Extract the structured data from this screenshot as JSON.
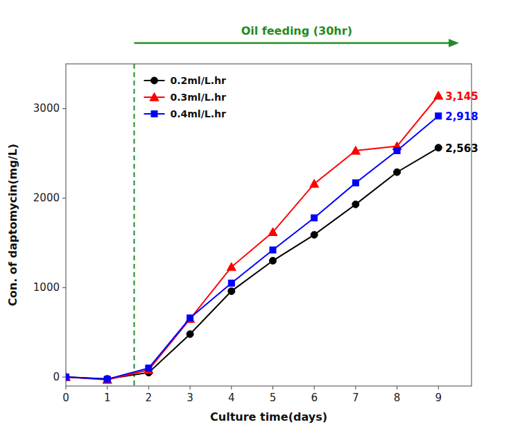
{
  "chart_data": {
    "type": "line",
    "x": [
      0,
      1,
      2,
      3,
      4,
      5,
      6,
      7,
      8,
      9
    ],
    "series": [
      {
        "name": "0.2ml/L.hr",
        "color": "#000000",
        "marker": "circle",
        "values": [
          0,
          -20,
          50,
          480,
          960,
          1300,
          1590,
          1930,
          2290,
          2563
        ]
      },
      {
        "name": "0.3ml/L.hr",
        "color": "#ff0000",
        "marker": "triangle",
        "values": [
          0,
          -30,
          80,
          650,
          1230,
          1620,
          2160,
          2530,
          2580,
          3145
        ]
      },
      {
        "name": "0.4ml/L.hr",
        "color": "#0000ff",
        "marker": "square",
        "values": [
          0,
          -25,
          100,
          660,
          1050,
          1420,
          1780,
          2170,
          2530,
          2918
        ]
      }
    ],
    "x_label": "Culture time(days)",
    "y_label": "Con. of daptomycin(mg/L)",
    "xlim": [
      0,
      9.8
    ],
    "ylim": [
      -100,
      3500
    ],
    "xticks": [
      0,
      1,
      2,
      3,
      4,
      5,
      6,
      7,
      8,
      9
    ],
    "yticks": [
      0,
      1000,
      2000,
      3000
    ],
    "grid": false,
    "legend": "upper left",
    "annotations": [
      {
        "text": "3,145",
        "x": 9,
        "y": 3145,
        "color": "#ff0000"
      },
      {
        "text": "2,918",
        "x": 9,
        "y": 2918,
        "color": "#0000ff"
      },
      {
        "text": "2,563",
        "x": 9,
        "y": 2563,
        "color": "#000000"
      }
    ],
    "reference_line": {
      "x": 1.65,
      "color": "#228B22",
      "line_style": "dashed"
    },
    "arrow": {
      "text": "Oil feeding (30hr)",
      "x_start": 1.65,
      "x_end": 9.5,
      "color": "#228B22"
    }
  }
}
